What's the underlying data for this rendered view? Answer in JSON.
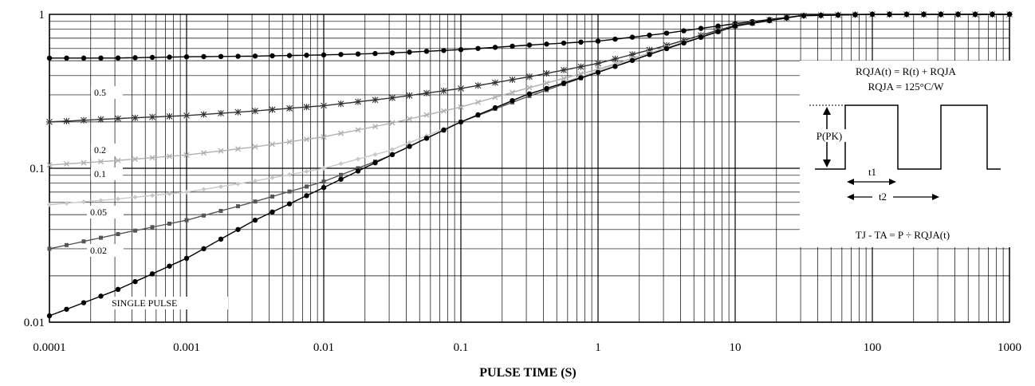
{
  "chart_data": {
    "type": "line",
    "title": "",
    "xlabel": "PULSE TIME (S)",
    "ylabel": "",
    "x_scale": "log",
    "y_scale": "log",
    "xlim": [
      0.0001,
      1000
    ],
    "ylim": [
      0.01,
      1
    ],
    "x_ticks": [
      "0.0001",
      "0.001",
      "0.01",
      "0.1",
      "1",
      "10",
      "100",
      "1000"
    ],
    "y_ticks": [
      "0.01",
      "0.1",
      "1"
    ],
    "grid": true,
    "colors": {
      "curve": "#000000",
      "light_curve": "#b0b0b0",
      "mid_curve": "#555555",
      "grid": "#000000"
    },
    "series": [
      {
        "name": "0.5",
        "marker": "dot",
        "color": "#000000",
        "x": [
          0.0001,
          0.0003,
          0.001,
          0.003,
          0.01,
          0.03,
          0.1,
          0.3,
          1,
          3,
          10,
          30,
          100,
          1000
        ],
        "y": [
          0.52,
          0.52,
          0.53,
          0.535,
          0.545,
          0.56,
          0.59,
          0.63,
          0.67,
          0.75,
          0.87,
          0.98,
          1.0,
          1.0
        ]
      },
      {
        "name": "0.2",
        "marker": "star",
        "color": "#333333",
        "x": [
          0.0001,
          0.0003,
          0.001,
          0.003,
          0.01,
          0.03,
          0.1,
          0.3,
          1,
          3,
          10,
          30,
          100,
          1000
        ],
        "y": [
          0.2,
          0.21,
          0.22,
          0.235,
          0.255,
          0.285,
          0.33,
          0.39,
          0.48,
          0.62,
          0.85,
          0.98,
          1.0,
          1.0
        ]
      },
      {
        "name": "0.1",
        "marker": "cross",
        "color": "#b0b0b0",
        "x": [
          0.0001,
          0.0003,
          0.001,
          0.003,
          0.01,
          0.03,
          0.1,
          0.3,
          1,
          3,
          10,
          30,
          100,
          1000
        ],
        "y": [
          0.105,
          0.112,
          0.122,
          0.137,
          0.16,
          0.195,
          0.25,
          0.33,
          0.44,
          0.6,
          0.84,
          0.98,
          1.0,
          1.0
        ]
      },
      {
        "name": "0.05",
        "marker": "diamond",
        "color": "#c8c8c8",
        "x": [
          0.0001,
          0.0003,
          0.001,
          0.003,
          0.01,
          0.03,
          0.1,
          0.3,
          1,
          3,
          10,
          30,
          100,
          1000
        ],
        "y": [
          0.058,
          0.063,
          0.07,
          0.082,
          0.1,
          0.13,
          0.2,
          0.3,
          0.43,
          0.6,
          0.84,
          0.98,
          1.0,
          1.0
        ]
      },
      {
        "name": "0.02",
        "marker": "square",
        "color": "#555555",
        "x": [
          0.0001,
          0.0003,
          0.001,
          0.003,
          0.01,
          0.03,
          0.1,
          0.3,
          1,
          3,
          10,
          30,
          100,
          1000
        ],
        "y": [
          0.03,
          0.037,
          0.046,
          0.06,
          0.082,
          0.12,
          0.2,
          0.29,
          0.42,
          0.59,
          0.84,
          0.98,
          1.0,
          1.0
        ]
      },
      {
        "name": "SINGLE PULSE",
        "marker": "dot",
        "color": "#000000",
        "x": [
          0.0001,
          0.0003,
          0.001,
          0.003,
          0.01,
          0.03,
          0.1,
          0.3,
          1,
          3,
          10,
          30,
          100,
          1000
        ],
        "y": [
          0.011,
          0.016,
          0.026,
          0.045,
          0.075,
          0.12,
          0.2,
          0.3,
          0.42,
          0.59,
          0.84,
          0.98,
          1.0,
          1.0
        ]
      }
    ],
    "curve_labels": [
      "0.5",
      "0.2",
      "0.1",
      "0.05",
      "0.02",
      "SINGLE PULSE"
    ],
    "annotations": {
      "formula1": "RQJA(t) = R(t) + RQJA",
      "formula2": "RQJA = 125°C/W",
      "ppk": "P(PK)",
      "t1": "t1",
      "t2": "t2",
      "formula3": "TJ - TA = P ÷ RQJA(t)"
    }
  }
}
